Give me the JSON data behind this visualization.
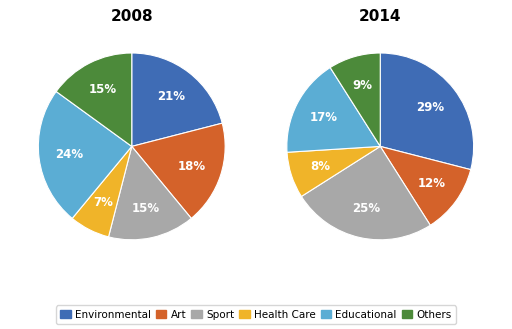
{
  "title_2008": "2008",
  "title_2014": "2014",
  "labels": [
    "Environmental",
    "Art",
    "Sport",
    "Health Care",
    "Educational",
    "Others"
  ],
  "colors": [
    "#3F6CB5",
    "#D4622A",
    "#A8A8A8",
    "#F0B429",
    "#5BADD4",
    "#4C8A3A"
  ],
  "values_2008": [
    21,
    18,
    15,
    7,
    24,
    15
  ],
  "values_2014": [
    29,
    12,
    25,
    8,
    17,
    9
  ],
  "legend_labels": [
    "Environmental",
    "Art",
    "Sport",
    "Health Care",
    "Educational",
    "Others"
  ],
  "startangle_2008": 90,
  "startangle_2014": 90,
  "title_fontsize": 11,
  "label_fontsize": 8.5,
  "legend_fontsize": 7.5
}
